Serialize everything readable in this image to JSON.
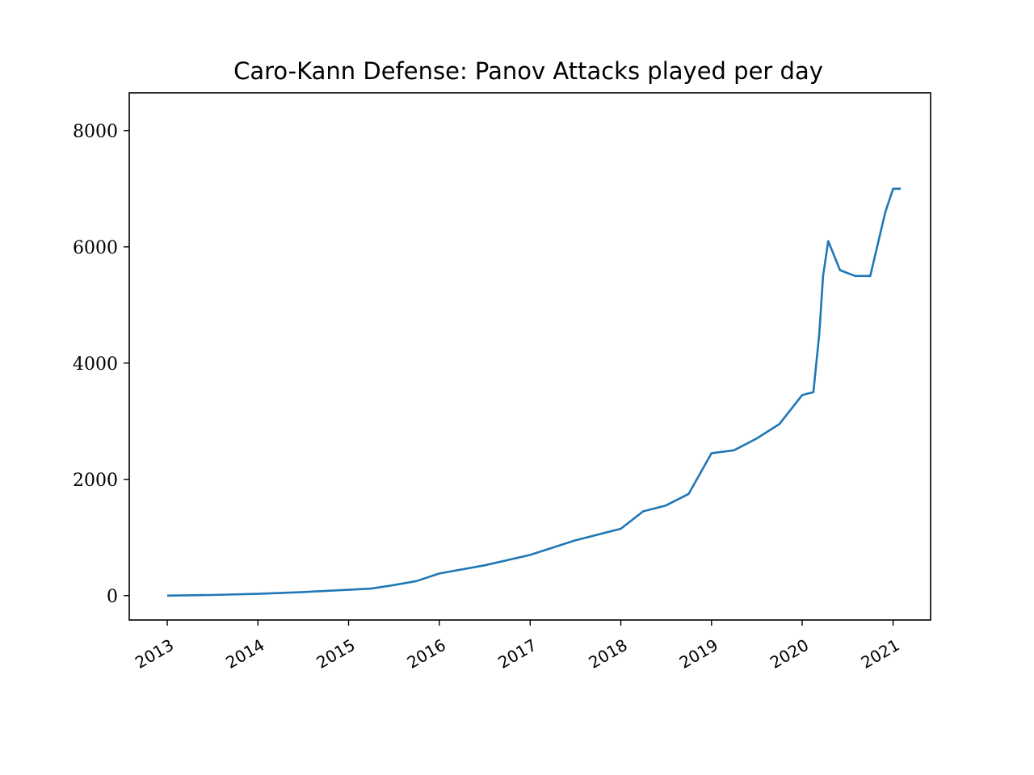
{
  "chart_data": {
    "type": "line",
    "title": "Caro-Kann Defense: Panov Attacks played per day",
    "xlabel": "",
    "ylabel": "",
    "x_range": [
      "2012-08-01",
      "2021-06-01"
    ],
    "ylim": [
      -420,
      8650
    ],
    "y_ticks": [
      0,
      2000,
      4000,
      6000,
      8000
    ],
    "y_tick_labels": [
      "0",
      "2000",
      "4000",
      "6000",
      "8000"
    ],
    "x_ticks": [
      "2013-01-01",
      "2014-01-01",
      "2015-01-01",
      "2016-01-01",
      "2017-01-01",
      "2018-01-01",
      "2019-01-01",
      "2020-01-01",
      "2021-01-01"
    ],
    "x_tick_labels": [
      "2013",
      "2014",
      "2015",
      "2016",
      "2017",
      "2018",
      "2019",
      "2020",
      "2021"
    ],
    "grid": false,
    "legend": "none",
    "line_color": "#1f77b4",
    "series": [
      {
        "x": [
          "2013-01-01",
          "2013-07-01",
          "2014-01-01",
          "2014-07-01",
          "2015-01-01",
          "2015-04-01",
          "2015-07-01",
          "2015-10-01",
          "2016-01-01",
          "2016-07-01",
          "2017-01-01",
          "2017-07-01",
          "2018-01-01",
          "2018-04-01",
          "2018-07-01",
          "2018-10-01",
          "2019-01-01",
          "2019-04-01",
          "2019-07-01",
          "2019-10-01",
          "2020-01-01",
          "2020-02-15",
          "2020-03-10",
          "2020-03-25",
          "2020-04-15",
          "2020-06-01",
          "2020-08-01",
          "2020-10-01",
          "2020-12-01",
          "2021-01-01",
          "2021-02-01"
        ],
        "values": [
          0,
          10,
          30,
          60,
          100,
          120,
          180,
          250,
          380,
          520,
          700,
          950,
          1150,
          1450,
          1550,
          1750,
          2450,
          2500,
          2700,
          2950,
          3450,
          3500,
          4500,
          5500,
          6100,
          5600,
          5500,
          5500,
          6600,
          7000,
          7000
        ]
      }
    ]
  }
}
